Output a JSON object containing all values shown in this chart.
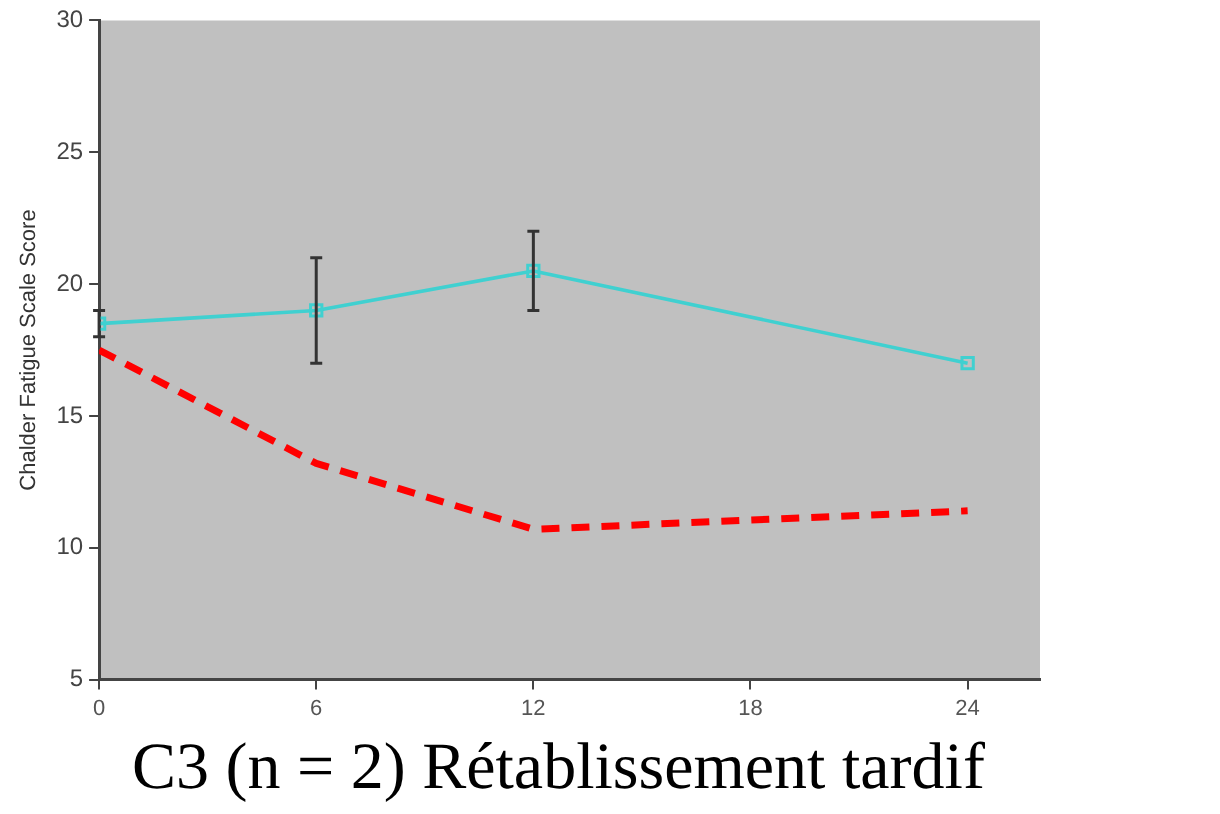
{
  "chart_data": {
    "type": "line",
    "ylabel": "Chalder Fatigue Scale Score",
    "x": [
      0,
      6,
      12,
      24
    ],
    "xlim": [
      0,
      26
    ],
    "xticks": [
      0,
      6,
      12,
      18,
      24
    ],
    "ylim": [
      5,
      30
    ],
    "yticks": [
      5,
      10,
      15,
      20,
      25,
      30
    ],
    "grid": false,
    "legend": false,
    "series": [
      {
        "color": "#40d0d0",
        "values": [
          18.5,
          19,
          20.5,
          17
        ],
        "errors": [
          0.5,
          2,
          [
            19,
            22
          ],
          null
        ],
        "marker": "square",
        "line_style": "solid"
      },
      {
        "color": "#ff0000",
        "values": [
          17.5,
          13.2,
          10.7,
          11.4
        ],
        "marker": "none",
        "line_style": "dashed"
      }
    ],
    "annotations": [
      "C3 (n = 2)  Rétablissement tardif"
    ]
  }
}
